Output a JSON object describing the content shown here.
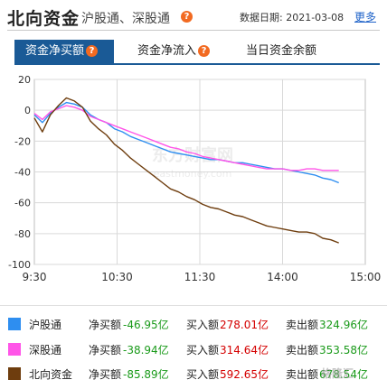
{
  "header": {
    "title": "北向资金",
    "subtitle": "沪股通、深股通",
    "date_label": "数据日期: 2021-03-08",
    "more": "更多",
    "help_glyph": "?"
  },
  "tabs": [
    {
      "label": "资金净买额",
      "active": true
    },
    {
      "label": "资金净流入",
      "active": false
    },
    {
      "label": "当日资金余额",
      "active": false
    }
  ],
  "watermark": {
    "line1": "东方财富网",
    "line2": "eastmoney.com"
  },
  "corner_mark": "格隆汇",
  "chart_data": {
    "type": "line",
    "x_ticks": [
      "9:30",
      "10:30",
      "11:30",
      "14:00",
      "15:00"
    ],
    "y_ticks": [
      20,
      0,
      -20,
      -40,
      -60,
      -80,
      -100
    ],
    "ylim": [
      -100,
      20
    ],
    "grid": true,
    "series": [
      {
        "name": "沪股通",
        "color": "#2e8ef0",
        "values": [
          -3,
          -8,
          -2,
          2,
          5,
          4,
          2,
          -3,
          -6,
          -8,
          -12,
          -14,
          -17,
          -19,
          -21,
          -23,
          -25,
          -27,
          -28,
          -29,
          -30,
          -31,
          -32,
          -32,
          -33,
          -34,
          -34,
          -35,
          -36,
          -37,
          -38,
          -38,
          -39,
          -40,
          -41,
          -42,
          -44,
          -45,
          -47
        ]
      },
      {
        "name": "深股通",
        "color": "#ff55e8",
        "values": [
          -2,
          -6,
          -1,
          1,
          3,
          2,
          0,
          -4,
          -6,
          -8,
          -10,
          -12,
          -14,
          -16,
          -18,
          -20,
          -22,
          -24,
          -25,
          -27,
          -28,
          -30,
          -31,
          -32,
          -33,
          -34,
          -35,
          -36,
          -37,
          -38,
          -38,
          -38,
          -39,
          -39,
          -38,
          -38,
          -39,
          -39,
          -39
        ]
      },
      {
        "name": "北向资金",
        "color": "#6e3d0e",
        "values": [
          -5,
          -14,
          -3,
          3,
          8,
          6,
          2,
          -7,
          -12,
          -16,
          -22,
          -26,
          -31,
          -35,
          -39,
          -43,
          -47,
          -51,
          -53,
          -56,
          -58,
          -61,
          -63,
          -64,
          -66,
          -68,
          -69,
          -71,
          -73,
          -75,
          -76,
          -77,
          -78,
          -79,
          -79,
          -80,
          -83,
          -84,
          -86
        ]
      }
    ]
  },
  "legend": [
    {
      "name": "沪股通",
      "color": "#2e8ef0",
      "net_label": "净买额",
      "net": "-46.95亿",
      "buy_label": "买入额",
      "buy": "278.01亿",
      "sell_label": "卖出额",
      "sell": "324.96亿"
    },
    {
      "name": "深股通",
      "color": "#ff55e8",
      "net_label": "净买额",
      "net": "-38.94亿",
      "buy_label": "买入额",
      "buy": "314.64亿",
      "sell_label": "卖出额",
      "sell": "353.58亿"
    },
    {
      "name": "北向资金",
      "color": "#6e3d0e",
      "net_label": "净买额",
      "net": "-85.89亿",
      "buy_label": "买入额",
      "buy": "592.65亿",
      "sell_label": "卖出额",
      "sell": "678.54亿"
    }
  ]
}
